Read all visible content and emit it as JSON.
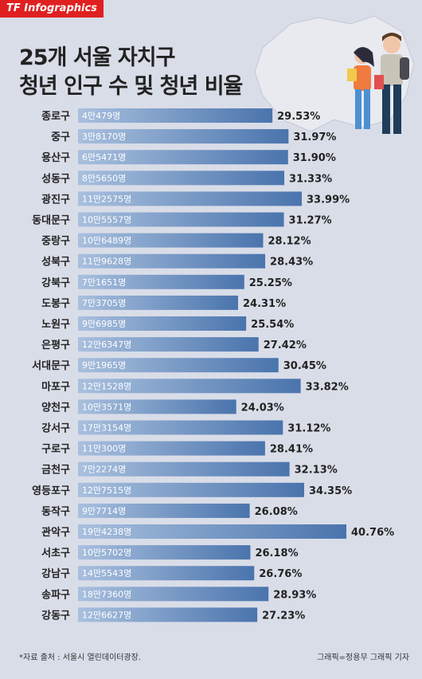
{
  "brand": "TF Infographics",
  "title_line1": "25개 서울 자치구",
  "title_line2": "청년 인구 수 및 청년 비율",
  "source": "*자료 출처 : 서울시 열린데이터광장.",
  "credit": "그래픽=정용무 그래픽 기자",
  "colors": {
    "bar_start": "#a9c0de",
    "bar_end": "#4a74ad",
    "background": "#d9dde8",
    "brand": "#e02020"
  },
  "chart_data": {
    "type": "bar",
    "orientation": "horizontal",
    "title": "25개 서울 자치구 청년 인구 수 및 청년 비율",
    "categories": [
      "종로구",
      "중구",
      "용산구",
      "성동구",
      "광진구",
      "동대문구",
      "중랑구",
      "성북구",
      "강북구",
      "도봉구",
      "노원구",
      "은평구",
      "서대문구",
      "마포구",
      "양천구",
      "강서구",
      "구로구",
      "금천구",
      "영등포구",
      "동작구",
      "관악구",
      "서초구",
      "강남구",
      "송파구",
      "강동구"
    ],
    "population_labels": [
      "4만479명",
      "3만8170명",
      "6만5471명",
      "8만5650명",
      "11만2575명",
      "10만5557명",
      "10만6489명",
      "11만9628명",
      "7만1651명",
      "7만3705명",
      "9만6985명",
      "12만6347명",
      "9만1965명",
      "12만1528명",
      "10만3571명",
      "17만3154명",
      "11만300명",
      "7만2274명",
      "12만7515명",
      "9만7714명",
      "19만4238명",
      "10만5702명",
      "14만5543명",
      "18만7360명",
      "12만6627명"
    ],
    "population": [
      40479,
      38170,
      65471,
      85650,
      112575,
      105557,
      106489,
      119628,
      71651,
      73705,
      96985,
      126347,
      91965,
      121528,
      103571,
      173154,
      110300,
      72274,
      127515,
      97714,
      194238,
      105702,
      145543,
      187360,
      126627
    ],
    "values": [
      29.53,
      31.97,
      31.9,
      31.33,
      33.99,
      31.27,
      28.12,
      28.43,
      25.25,
      24.31,
      25.54,
      27.42,
      30.45,
      33.82,
      24.03,
      31.12,
      28.41,
      32.13,
      34.35,
      26.08,
      40.76,
      26.18,
      26.76,
      28.93,
      27.23
    ],
    "value_suffix": "%"
  }
}
